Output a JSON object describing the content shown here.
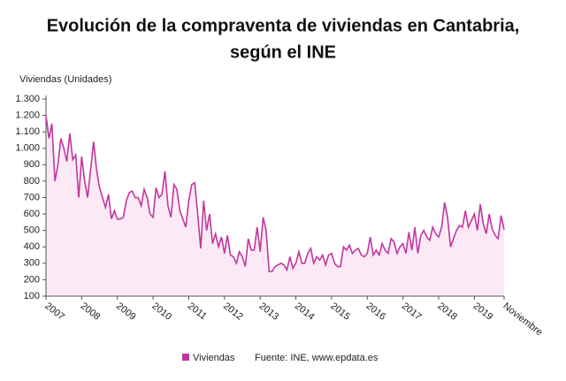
{
  "chart_data": {
    "type": "line",
    "title": [
      "Evolución de la compraventa de viviendas en Cantabria,",
      "según el INE"
    ],
    "y_label": "Viviendas (Unidades)",
    "source": "Fuente: INE, www.epdata.es",
    "area": true,
    "area_color": "#fbeaf6",
    "categories": [
      "2007",
      null,
      null,
      null,
      null,
      null,
      null,
      null,
      null,
      null,
      null,
      null,
      "2008",
      null,
      null,
      null,
      null,
      null,
      null,
      null,
      null,
      null,
      null,
      null,
      "2009",
      null,
      null,
      null,
      null,
      null,
      null,
      null,
      null,
      null,
      null,
      null,
      "2010",
      null,
      null,
      null,
      null,
      null,
      null,
      null,
      null,
      null,
      null,
      null,
      "2011",
      null,
      null,
      null,
      null,
      null,
      null,
      null,
      null,
      null,
      null,
      null,
      "2012",
      null,
      null,
      null,
      null,
      null,
      null,
      null,
      null,
      null,
      null,
      null,
      "2013",
      null,
      null,
      null,
      null,
      null,
      null,
      null,
      null,
      null,
      null,
      null,
      "2014",
      null,
      null,
      null,
      null,
      null,
      null,
      null,
      null,
      null,
      null,
      null,
      "2015",
      null,
      null,
      null,
      null,
      null,
      null,
      null,
      null,
      null,
      null,
      null,
      "2016",
      null,
      null,
      null,
      null,
      null,
      null,
      null,
      null,
      null,
      null,
      null,
      "2017",
      null,
      null,
      null,
      null,
      null,
      null,
      null,
      null,
      null,
      null,
      null,
      "2018",
      null,
      null,
      null,
      null,
      null,
      null,
      null,
      null,
      null,
      null,
      null,
      "2019",
      null,
      null,
      null,
      null,
      null,
      null,
      null,
      null,
      null,
      "Noviembre"
    ],
    "series": [
      {
        "name": "Viviendas",
        "color": "#c2369f",
        "values": [
          1200,
          1060,
          1150,
          800,
          900,
          1060,
          1000,
          920,
          1090,
          930,
          960,
          700,
          950,
          800,
          700,
          870,
          1040,
          870,
          760,
          700,
          640,
          720,
          570,
          620,
          570,
          570,
          580,
          680,
          730,
          740,
          700,
          700,
          650,
          750,
          700,
          600,
          580,
          760,
          700,
          720,
          860,
          650,
          580,
          780,
          750,
          620,
          570,
          520,
          680,
          780,
          790,
          600,
          390,
          680,
          500,
          600,
          420,
          480,
          400,
          460,
          360,
          470,
          350,
          340,
          300,
          370,
          340,
          280,
          450,
          380,
          380,
          520,
          370,
          580,
          500,
          250,
          250,
          280,
          290,
          300,
          290,
          260,
          340,
          270,
          300,
          370,
          300,
          300,
          360,
          390,
          300,
          340,
          320,
          350,
          290,
          350,
          360,
          300,
          280,
          280,
          400,
          380,
          410,
          360,
          380,
          390,
          350,
          340,
          360,
          460,
          350,
          380,
          350,
          420,
          380,
          360,
          450,
          430,
          360,
          400,
          420,
          360,
          490,
          380,
          520,
          360,
          470,
          500,
          460,
          440,
          520,
          480,
          460,
          520,
          670,
          580,
          400,
          450,
          500,
          530,
          520,
          620,
          520,
          560,
          600,
          500,
          660,
          540,
          480,
          600,
          510,
          470,
          450,
          590,
          505
        ]
      }
    ],
    "ylim": [
      100,
      1300
    ],
    "yticks": [
      100,
      200,
      300,
      400,
      500,
      600,
      700,
      800,
      900,
      {
        "value": 1000,
        "label": "1.000"
      },
      {
        "value": 1100,
        "label": "1.100"
      },
      {
        "value": 1200,
        "label": "1.200"
      },
      {
        "value": 1300,
        "label": "1.300"
      }
    ]
  }
}
